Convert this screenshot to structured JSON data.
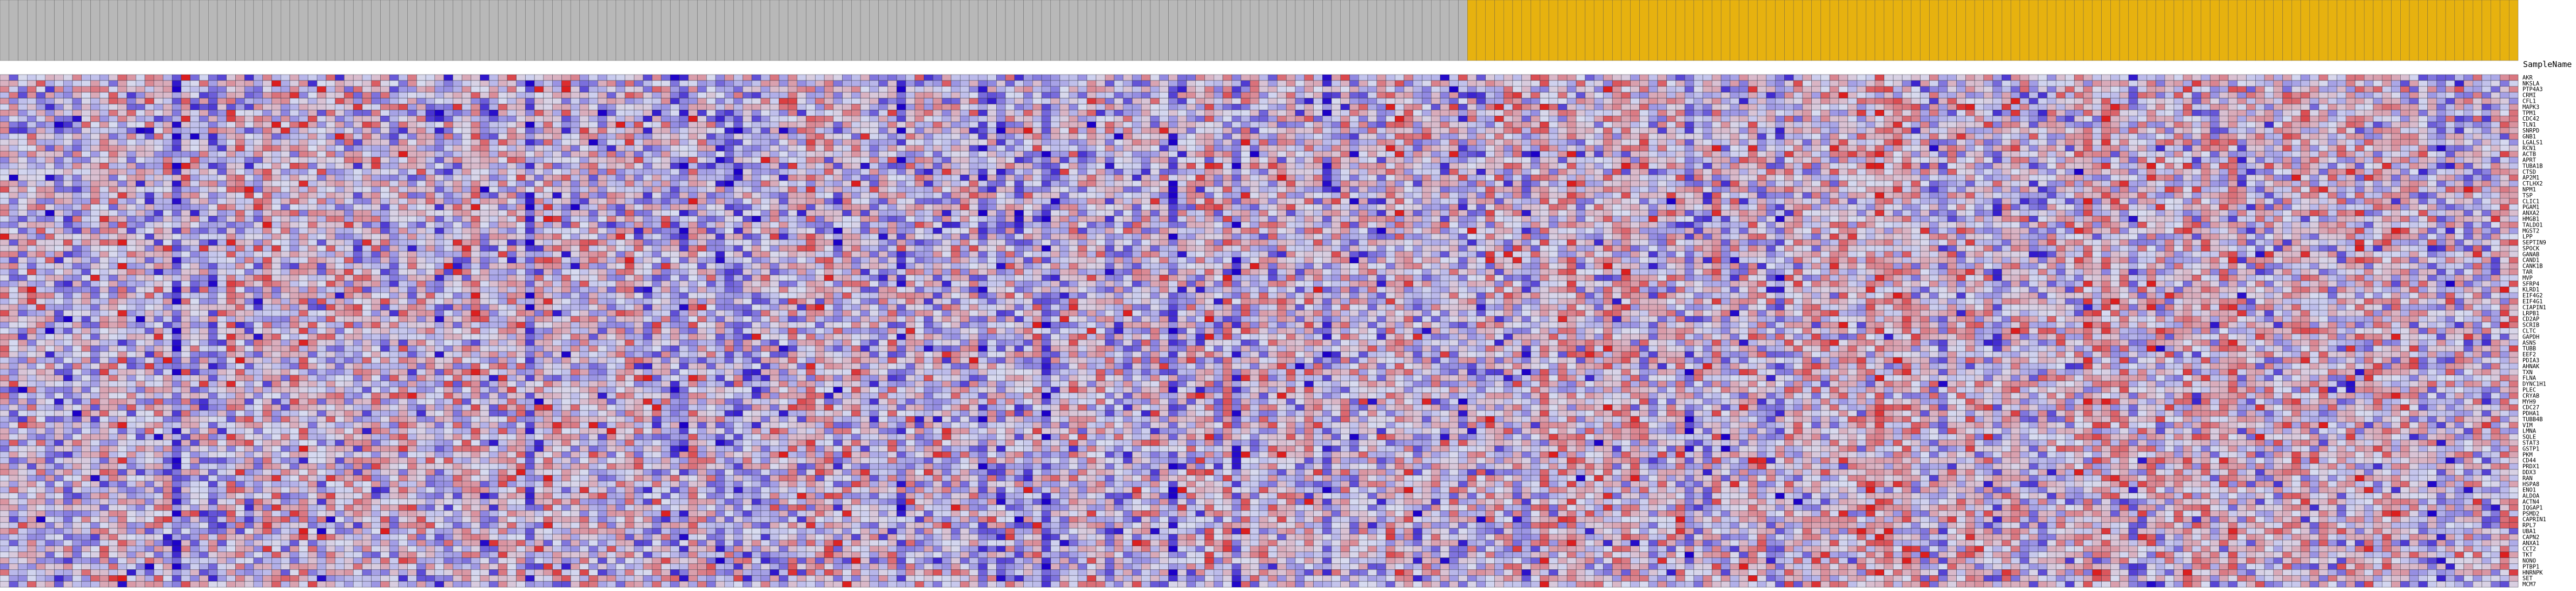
{
  "chart_data": {
    "type": "heatmap",
    "title": "",
    "xlabel": "",
    "ylabel": "",
    "sample_name_label": "SampleName",
    "groups": [
      {
        "color": "#b8b8b8"
      },
      {
        "color": "#e7b20f"
      }
    ],
    "color_scale": {
      "low": "#1c00c8",
      "mid": "#d8dcf0",
      "high": "#dc1e1e"
    },
    "rows": [
      "AKR",
      "NKSLA",
      "PTP4A3",
      "CRMI",
      "CFL1",
      "MAPK3",
      "TPM1",
      "CDC42",
      "TLN1",
      "SNRPD",
      "GNB1",
      "LGALS1",
      "RCN1",
      "ACTB",
      "APRT",
      "TUBA1B",
      "CTSD",
      "AP2M1",
      "CTLHX2",
      "NPM1",
      "TSP",
      "CLIC1",
      "PGAM1",
      "ANXA2",
      "HMGB1",
      "TALDO1",
      "MGST2",
      "LPP",
      "SEPTIN9",
      "SPOCK",
      "GANAB",
      "CAND1",
      "CANK1B",
      "TAR",
      "MVP",
      "SFRP4",
      "KLRD1",
      "EIF4G2",
      "EIF4G1",
      "CIAPIN1",
      "LRPB1",
      "CD2AP",
      "SCRIB",
      "CLTC",
      "GAPDH",
      "ASNS",
      "TUBB",
      "EEF2",
      "PDIA3",
      "AHNAK",
      "TXN",
      "FLNA",
      "DYNC1H1",
      "PLEC",
      "CRYAB",
      "MYH9",
      "CDC27",
      "PDHA1",
      "TUBB4B",
      "VIM",
      "LMNA",
      "SQLE",
      "STAT3",
      "GSTP1",
      "PKM",
      "CD44",
      "PRDX1",
      "DDX3",
      "RAN",
      "HSPA8",
      "ENO1",
      "ALDOA",
      "ACTN4",
      "IQGAP1",
      "PSMD2",
      "CAPRIN1",
      "RPL7",
      "UBA1",
      "CAPN2",
      "ANXA1",
      "CCT2",
      "TKT",
      "NONO",
      "PTBP1",
      "HNRNPK",
      "SET",
      "MCM7"
    ],
    "n_columns": 278,
    "n_group1_columns": 162,
    "value_range": [
      -3,
      3
    ]
  }
}
